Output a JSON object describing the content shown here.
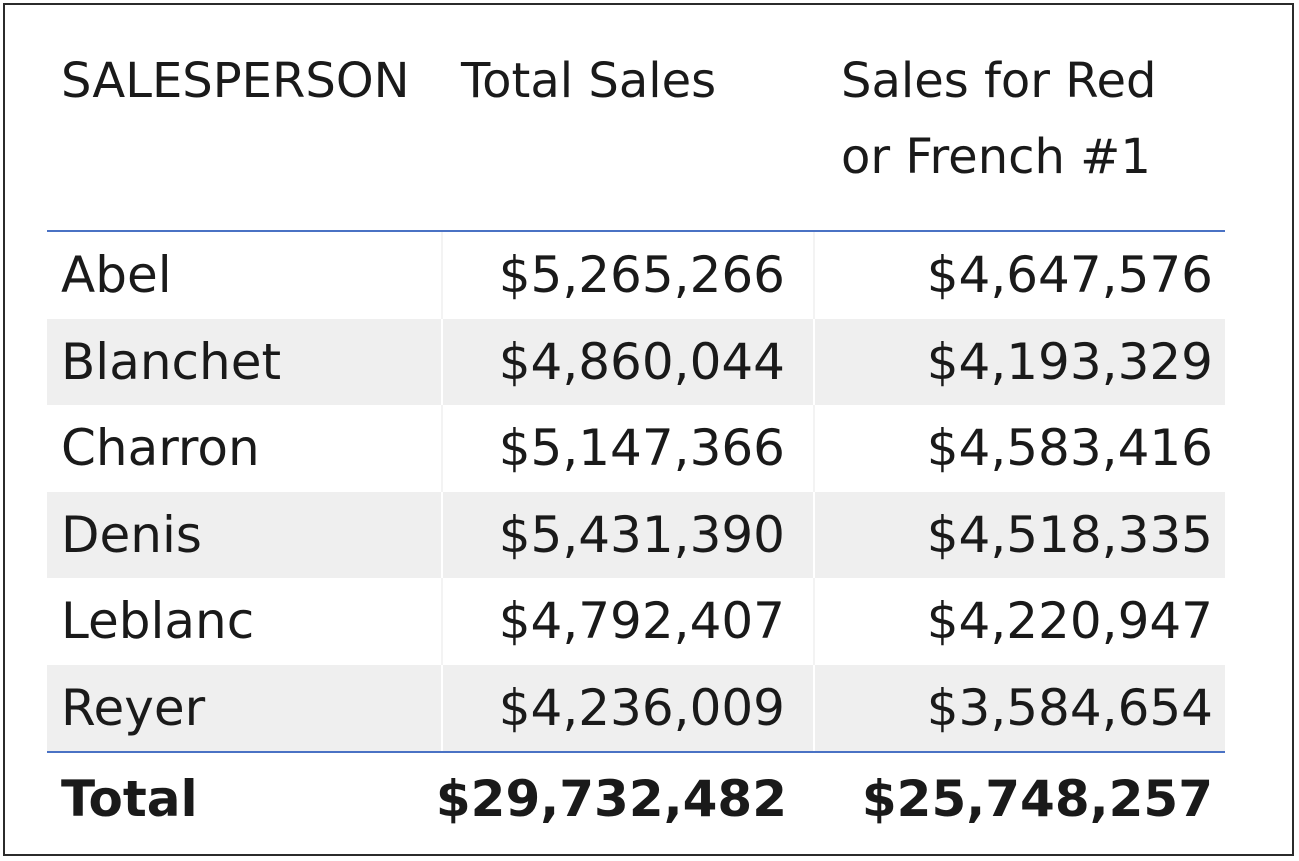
{
  "table": {
    "headers": {
      "salesperson": "SALESPERSON",
      "total_sales": "Total Sales",
      "sales_red_french": "Sales for Red or French #1"
    },
    "rows": [
      {
        "salesperson": "Abel",
        "total_sales": "$5,265,266",
        "sales_red_french": "$4,647,576"
      },
      {
        "salesperson": "Blanchet",
        "total_sales": "$4,860,044",
        "sales_red_french": "$4,193,329"
      },
      {
        "salesperson": "Charron",
        "total_sales": "$5,147,366",
        "sales_red_french": "$4,583,416"
      },
      {
        "salesperson": "Denis",
        "total_sales": "$5,431,390",
        "sales_red_french": "$4,518,335"
      },
      {
        "salesperson": "Leblanc",
        "total_sales": "$4,792,407",
        "sales_red_french": "$4,220,947"
      },
      {
        "salesperson": "Reyer",
        "total_sales": "$4,236,009",
        "sales_red_french": "$3,584,654"
      }
    ],
    "total": {
      "label": "Total",
      "total_sales": "$29,732,482",
      "sales_red_french": "$25,748,257"
    }
  },
  "colors": {
    "separator": "#4a72c4",
    "alt_row": "#efefef",
    "frame": "#2b2b2b"
  }
}
